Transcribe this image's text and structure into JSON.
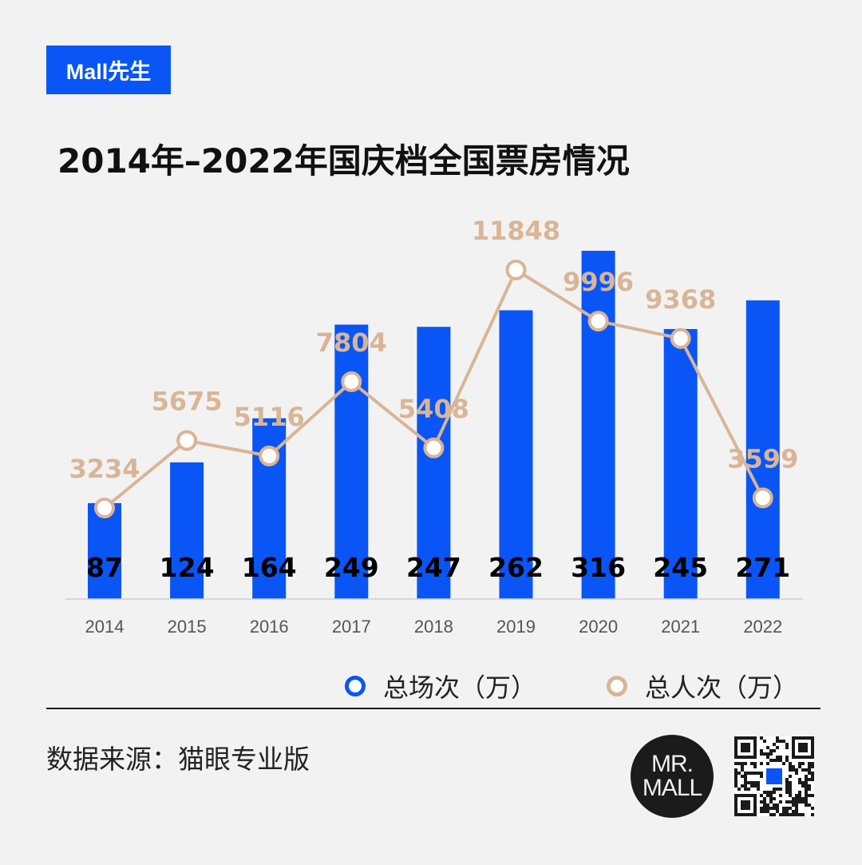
{
  "brand": {
    "tag": "Mall先生"
  },
  "title": "2014年–2022年国庆档全国票房情况",
  "legend": {
    "series1": "总场次（万）",
    "series2": "总人次（万）"
  },
  "source": "数据来源：猫眼专业版",
  "logo": {
    "line1": "MR.",
    "line2": "MALL"
  },
  "colors": {
    "bar": "#0a55f5",
    "line": "#d9b596",
    "background": "#f2f2f2"
  },
  "icons": {
    "qr": "qr-code-icon",
    "logo": "mr-mall-logo"
  },
  "chart_data": {
    "type": "bar+line",
    "categories": [
      "2014",
      "2015",
      "2016",
      "2017",
      "2018",
      "2019",
      "2020",
      "2021",
      "2022"
    ],
    "series": [
      {
        "name": "总场次（万）",
        "type": "bar",
        "values": [
          87,
          124,
          164,
          249,
          247,
          262,
          316,
          245,
          271
        ]
      },
      {
        "name": "总人次（万）",
        "type": "line",
        "values": [
          3234,
          5675,
          5116,
          7804,
          5408,
          11848,
          9996,
          9368,
          3599
        ]
      }
    ],
    "xlabel": "",
    "ylabel": "",
    "grid": false,
    "legend_position": "bottom-right"
  }
}
